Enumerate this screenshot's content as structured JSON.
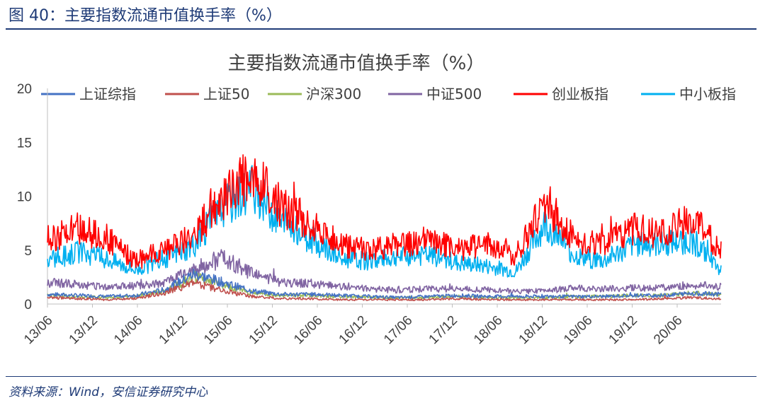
{
  "header": {
    "figure_title": "图 40：主要指数流通市值换手率（%）",
    "source": "资料来源：Wind，安信证券研究中心"
  },
  "chart_data": {
    "type": "line",
    "title": "主要指数流通市值换手率（%）",
    "xlabel": "",
    "ylabel": "",
    "ylim": [
      0,
      20
    ],
    "yticks": [
      0,
      5,
      10,
      15,
      20
    ],
    "xticks": [
      "13/06",
      "13/12",
      "14/06",
      "14/12",
      "15/06",
      "15/12",
      "16/06",
      "16/12",
      "17/06",
      "17/12",
      "18/06",
      "18/12",
      "19/06",
      "19/12",
      "20/06"
    ],
    "grid": false,
    "legend": "top",
    "series": [
      {
        "name": "上证综指",
        "color": "#4472c4",
        "values": [
          0.9,
          0.8,
          0.7,
          0.8,
          1.3,
          2.8,
          2.0,
          1.2,
          0.9,
          0.9,
          0.8,
          0.7,
          0.6,
          0.7,
          0.8,
          0.7,
          0.7,
          0.7,
          0.7,
          0.7,
          0.8,
          0.8,
          1.0,
          0.9
        ]
      },
      {
        "name": "上证50",
        "color": "#c0504d",
        "values": [
          0.6,
          0.5,
          0.4,
          0.5,
          1.0,
          2.0,
          1.2,
          0.7,
          0.5,
          0.5,
          0.4,
          0.4,
          0.4,
          0.4,
          0.5,
          0.4,
          0.4,
          0.4,
          0.4,
          0.4,
          0.4,
          0.5,
          0.6,
          0.5
        ]
      },
      {
        "name": "沪深300",
        "color": "#9bbb59",
        "values": [
          0.8,
          0.7,
          0.6,
          0.7,
          1.2,
          2.5,
          1.8,
          1.0,
          0.8,
          0.8,
          0.7,
          0.6,
          0.6,
          0.6,
          0.7,
          0.6,
          0.6,
          0.6,
          0.7,
          0.7,
          0.8,
          0.8,
          1.0,
          0.9
        ]
      },
      {
        "name": "中证500",
        "color": "#8064a2",
        "values": [
          2.0,
          1.8,
          1.6,
          1.7,
          2.0,
          3.2,
          4.3,
          2.8,
          2.0,
          1.9,
          1.6,
          1.4,
          1.3,
          1.4,
          1.4,
          1.3,
          1.2,
          1.2,
          1.5,
          1.4,
          1.5,
          1.5,
          1.8,
          1.6
        ]
      },
      {
        "name": "创业板指",
        "color": "#ff0000",
        "values": [
          6.0,
          7.0,
          6.2,
          4.0,
          5.0,
          6.5,
          10.0,
          12.0,
          9.0,
          7.5,
          5.5,
          5.0,
          5.5,
          6.0,
          5.0,
          5.5,
          4.5,
          9.5,
          6.0,
          5.5,
          7.0,
          6.5,
          8.0,
          5.0
        ]
      },
      {
        "name": "中小板指",
        "color": "#00b0f0",
        "values": [
          4.0,
          4.8,
          4.2,
          3.2,
          4.2,
          5.5,
          9.0,
          11.0,
          7.5,
          6.0,
          4.2,
          4.0,
          4.4,
          4.6,
          3.8,
          3.5,
          3.0,
          7.5,
          4.5,
          4.0,
          5.5,
          5.5,
          6.0,
          3.2
        ]
      }
    ]
  }
}
